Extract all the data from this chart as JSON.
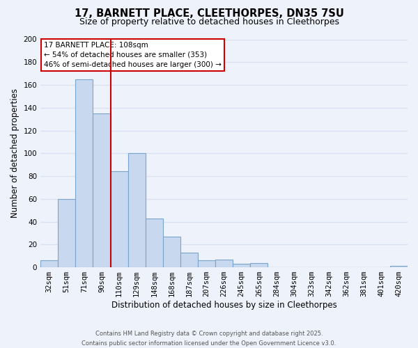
{
  "title": "17, BARNETT PLACE, CLEETHORPES, DN35 7SU",
  "subtitle": "Size of property relative to detached houses in Cleethorpes",
  "xlabel": "Distribution of detached houses by size in Cleethorpes",
  "ylabel": "Number of detached properties",
  "categories": [
    "32sqm",
    "51sqm",
    "71sqm",
    "90sqm",
    "110sqm",
    "129sqm",
    "148sqm",
    "168sqm",
    "187sqm",
    "207sqm",
    "226sqm",
    "245sqm",
    "265sqm",
    "284sqm",
    "304sqm",
    "323sqm",
    "342sqm",
    "362sqm",
    "381sqm",
    "401sqm",
    "420sqm"
  ],
  "values": [
    6,
    60,
    165,
    135,
    84,
    100,
    43,
    27,
    13,
    6,
    7,
    3,
    4,
    0,
    0,
    0,
    0,
    0,
    0,
    0,
    1
  ],
  "bar_color": "#c8d8ee",
  "bar_edge_color": "#7ba4cc",
  "vline_color": "#cc0000",
  "annotation_text_line1": "17 BARNETT PLACE: 108sqm",
  "annotation_text_line2": "← 54% of detached houses are smaller (353)",
  "annotation_text_line3": "46% of semi-detached houses are larger (300) →",
  "footer_line1": "Contains HM Land Registry data © Crown copyright and database right 2025.",
  "footer_line2": "Contains public sector information licensed under the Open Government Licence v3.0.",
  "ylim": [
    0,
    200
  ],
  "yticks": [
    0,
    20,
    40,
    60,
    80,
    100,
    120,
    140,
    160,
    180,
    200
  ],
  "bg_color": "#eef2fb",
  "grid_color": "#d8e2f0",
  "title_fontsize": 10.5,
  "subtitle_fontsize": 9,
  "axis_label_fontsize": 8.5,
  "tick_fontsize": 7.5
}
